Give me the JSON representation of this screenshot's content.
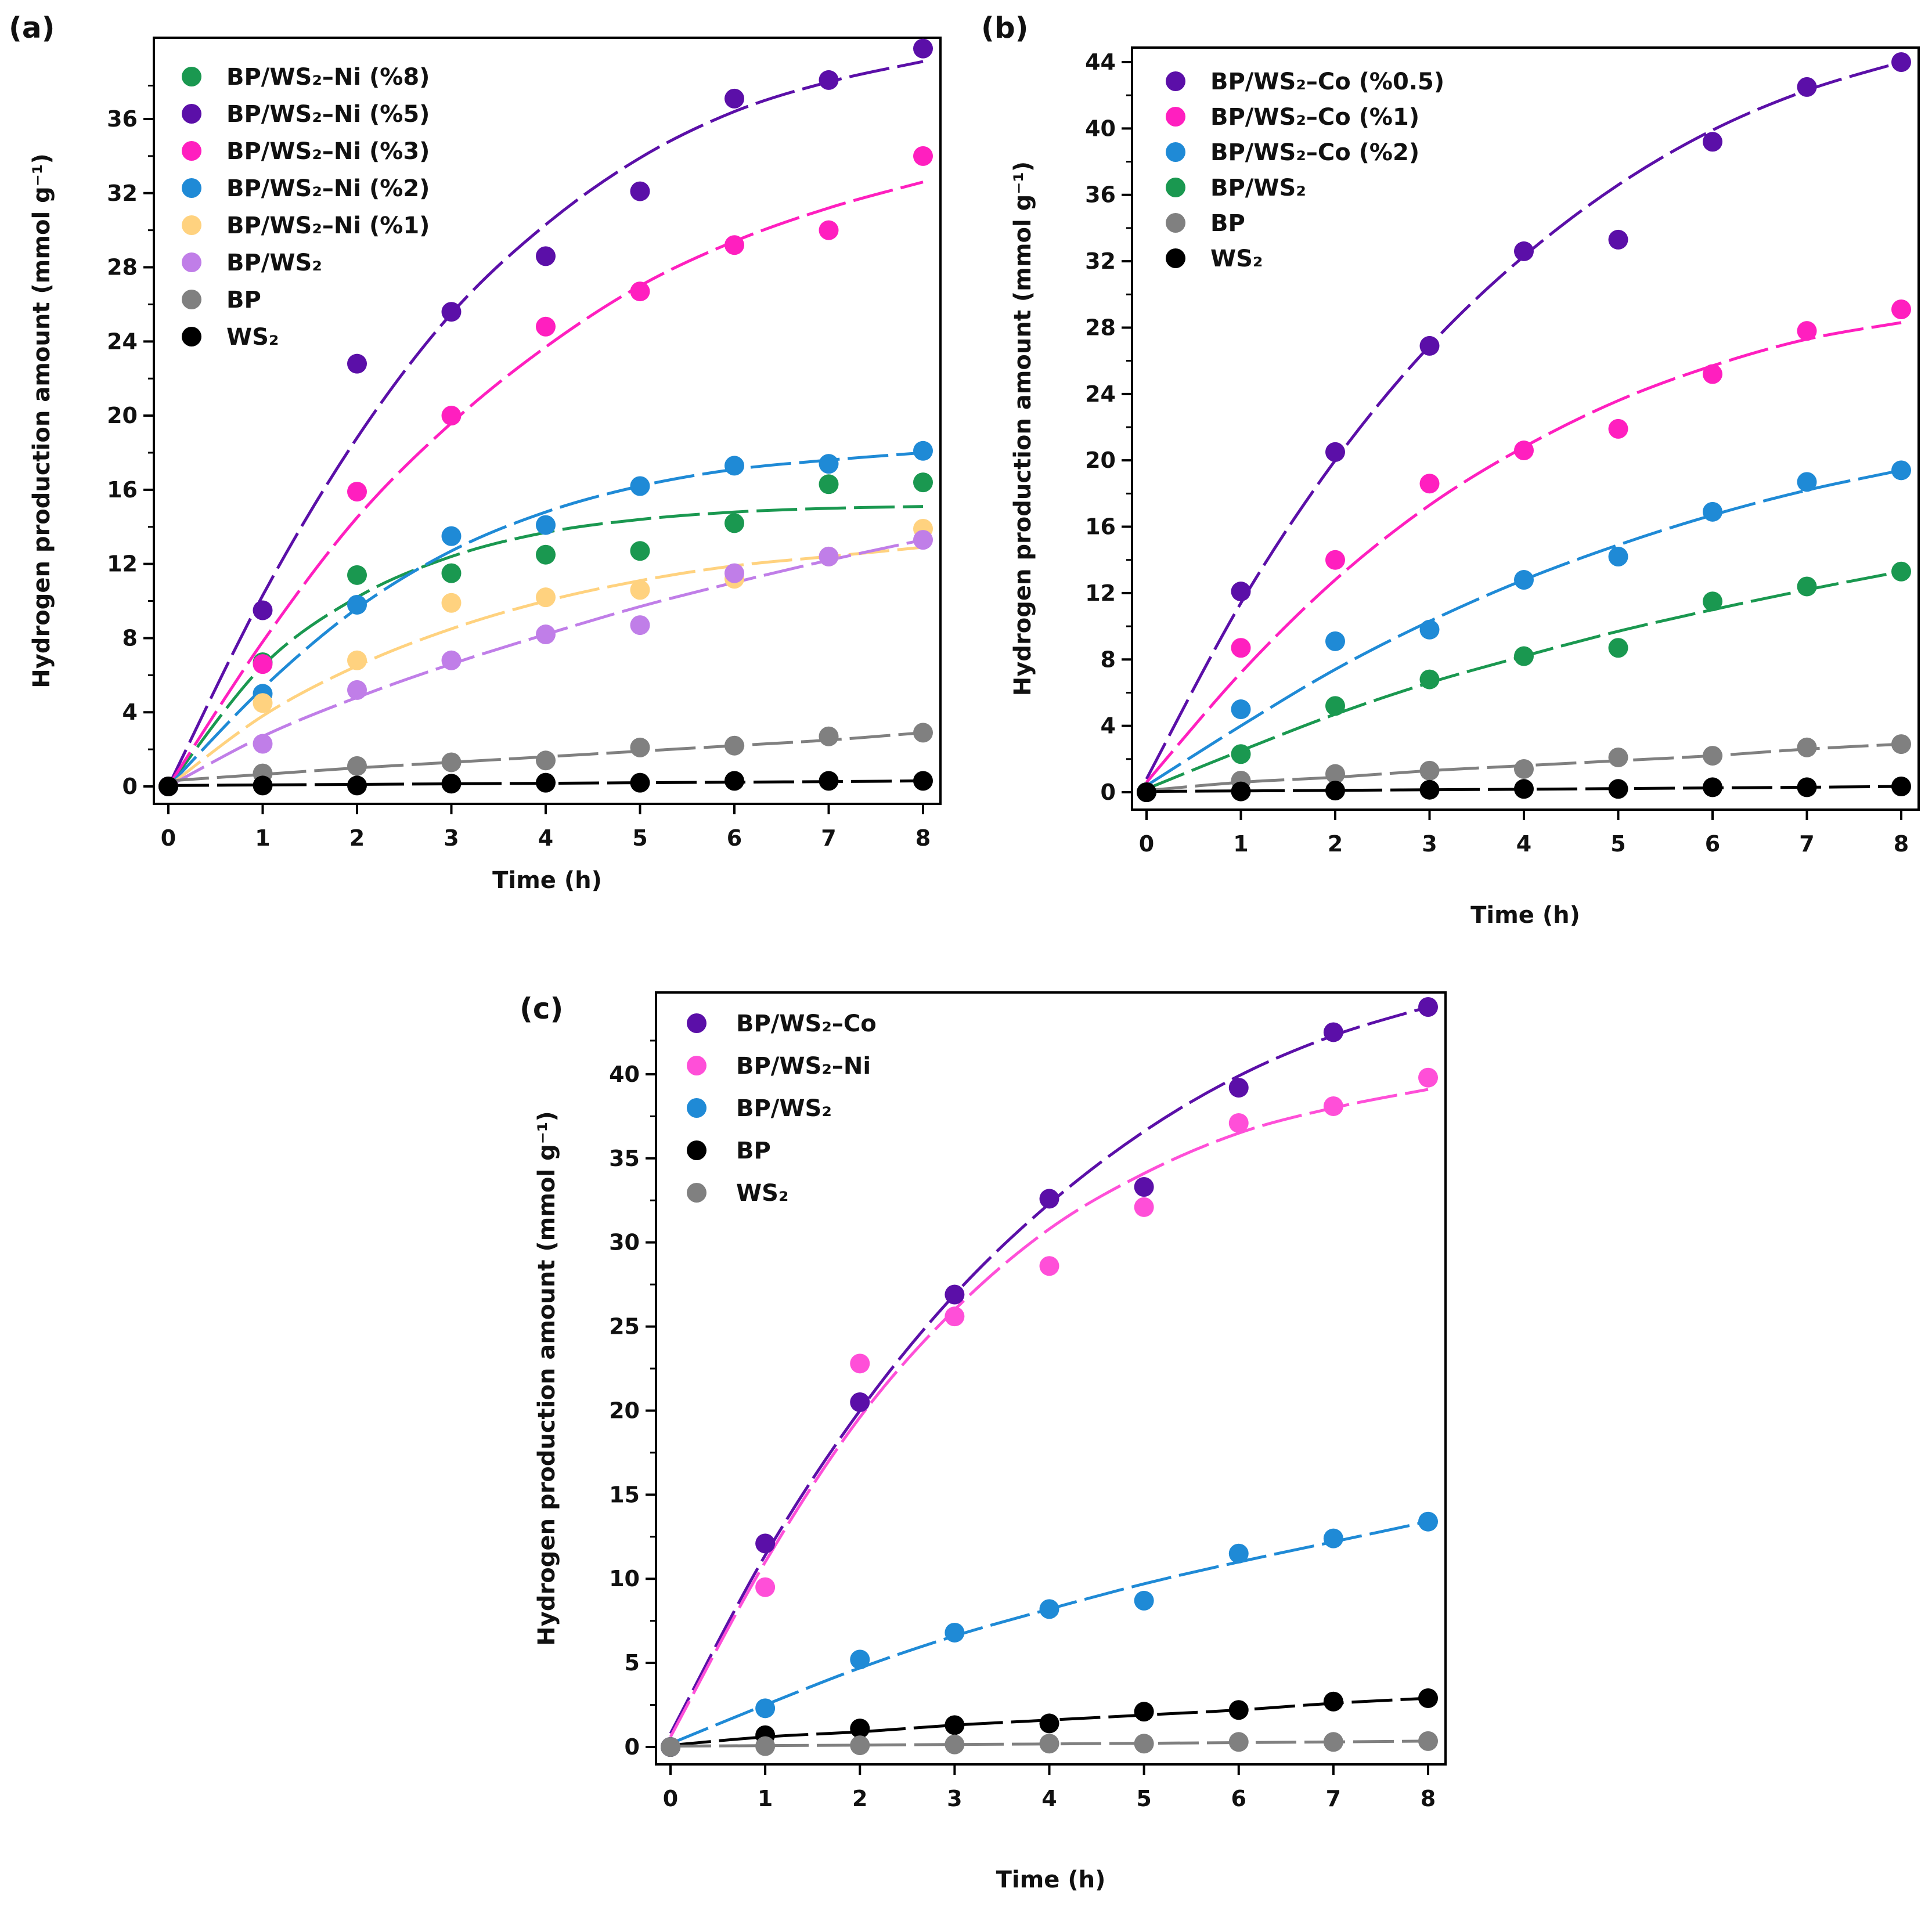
{
  "chart_data": [
    {
      "panel": "(a)",
      "type": "scatter",
      "xlabel": "Time (h)",
      "ylabel": "Hydrogen production amount (mmol g⁻¹)",
      "xlim": [
        0,
        8
      ],
      "ylim": [
        0,
        39.6
      ],
      "xticks": [
        0,
        1,
        2,
        3,
        4,
        5,
        6,
        7,
        8
      ],
      "yticks": [
        0,
        4,
        8,
        12,
        16,
        20,
        24,
        28,
        32,
        36
      ],
      "legend_position": "top-left",
      "x": [
        0,
        1,
        2,
        3,
        4,
        5,
        6,
        7,
        8
      ],
      "series": [
        {
          "name": "BP/WS₂–Ni (%8)",
          "color": "#1a9850",
          "values": [
            0,
            6.7,
            11.4,
            11.5,
            12.5,
            12.7,
            14.2,
            16.3,
            16.4
          ],
          "fit": [
            0,
            6.5,
            10.2,
            12.4,
            13.7,
            14.4,
            14.8,
            15.0,
            15.1
          ]
        },
        {
          "name": "BP/WS₂–Ni (%5)",
          "color": "#5b0fa8",
          "values": [
            0,
            9.5,
            22.8,
            25.6,
            28.6,
            32.1,
            37.1,
            38.1,
            39.8
          ],
          "fit": [
            0,
            10.3,
            18.8,
            25.5,
            30.3,
            33.9,
            36.4,
            38.0,
            39.1
          ]
        },
        {
          "name": "BP/WS₂–Ni (%3)",
          "color": "#ff1fbf",
          "values": [
            0,
            6.6,
            15.9,
            20.0,
            24.8,
            26.7,
            29.2,
            30.0,
            34.0
          ],
          "fit": [
            0,
            7.8,
            14.5,
            19.6,
            23.7,
            27.0,
            29.4,
            31.2,
            32.6
          ]
        },
        {
          "name": "BP/WS₂–Ni (%2)",
          "color": "#1f8ad6",
          "values": [
            0,
            5.0,
            9.8,
            13.5,
            14.1,
            16.2,
            17.3,
            17.4,
            18.1
          ],
          "fit": [
            0,
            5.3,
            9.6,
            12.7,
            14.8,
            16.2,
            17.1,
            17.6,
            18.0
          ]
        },
        {
          "name": "BP/WS₂–Ni (%1)",
          "color": "#ffd27f",
          "values": [
            0,
            4.5,
            6.8,
            9.9,
            10.2,
            10.6,
            11.2,
            12.4,
            13.9
          ],
          "fit": [
            0,
            3.8,
            6.5,
            8.5,
            10.0,
            11.1,
            11.9,
            12.4,
            12.9
          ]
        },
        {
          "name": "BP/WS₂",
          "color": "#c07ee8",
          "values": [
            0,
            2.3,
            5.2,
            6.8,
            8.2,
            8.7,
            11.5,
            12.4,
            13.3
          ],
          "fit": [
            0,
            2.7,
            4.8,
            6.6,
            8.2,
            9.7,
            11.0,
            12.2,
            13.3
          ]
        },
        {
          "name": "BP",
          "color": "#808080",
          "values": [
            0,
            0.7,
            1.1,
            1.3,
            1.4,
            2.1,
            2.2,
            2.7,
            2.9
          ],
          "fit": [
            0.3,
            0.65,
            1.0,
            1.3,
            1.6,
            1.9,
            2.2,
            2.5,
            2.9
          ]
        },
        {
          "name": "WS₂",
          "color": "#000000",
          "values": [
            0,
            0.05,
            0.05,
            0.15,
            0.2,
            0.2,
            0.3,
            0.3,
            0.3
          ],
          "fit": [
            0.05,
            0.08,
            0.11,
            0.14,
            0.17,
            0.2,
            0.23,
            0.26,
            0.3
          ]
        }
      ]
    },
    {
      "panel": "(b)",
      "type": "scatter",
      "xlabel": "Time (h)",
      "ylabel": "Hydrogen production amount (mmol g⁻¹)",
      "xlim": [
        0,
        8
      ],
      "ylim": [
        0,
        44
      ],
      "xticks": [
        0,
        1,
        2,
        3,
        4,
        5,
        6,
        7,
        8
      ],
      "yticks": [
        0,
        4,
        8,
        12,
        16,
        20,
        24,
        28,
        32,
        36,
        40,
        44
      ],
      "legend_position": "top-left",
      "x": [
        0,
        1,
        2,
        3,
        4,
        5,
        6,
        7,
        8
      ],
      "series": [
        {
          "name": "BP/WS₂–Co (%0.5)",
          "color": "#5b0fa8",
          "values": [
            0,
            12.1,
            20.5,
            26.9,
            32.6,
            33.3,
            39.2,
            42.5,
            44.0
          ],
          "fit": [
            0.8,
            11.4,
            20.0,
            26.9,
            32.3,
            36.6,
            39.9,
            42.3,
            44.0
          ]
        },
        {
          "name": "BP/WS₂–Co (%1)",
          "color": "#ff1fbf",
          "values": [
            0,
            8.7,
            14.0,
            18.6,
            20.6,
            21.9,
            25.2,
            27.8,
            29.1
          ],
          "fit": [
            0.6,
            7.2,
            12.8,
            17.3,
            20.8,
            23.6,
            25.7,
            27.3,
            28.3
          ]
        },
        {
          "name": "BP/WS₂–Co (%2)",
          "color": "#1f8ad6",
          "values": [
            0,
            5.0,
            9.1,
            9.8,
            12.8,
            14.2,
            16.9,
            18.7,
            19.4
          ],
          "fit": [
            0.4,
            4.0,
            7.4,
            10.3,
            12.8,
            14.9,
            16.7,
            18.2,
            19.4
          ]
        },
        {
          "name": "BP/WS₂",
          "color": "#1a9850",
          "values": [
            0,
            2.3,
            5.2,
            6.8,
            8.2,
            8.7,
            11.5,
            12.4,
            13.3
          ],
          "fit": [
            0.2,
            2.5,
            4.7,
            6.6,
            8.2,
            9.7,
            11.0,
            12.2,
            13.3
          ]
        },
        {
          "name": "BP",
          "color": "#808080",
          "values": [
            0,
            0.7,
            1.1,
            1.3,
            1.4,
            2.1,
            2.2,
            2.7,
            2.9
          ],
          "fit": [
            0.1,
            0.6,
            0.9,
            1.3,
            1.6,
            1.9,
            2.2,
            2.6,
            2.9
          ]
        },
        {
          "name": "WS₂",
          "color": "#000000",
          "values": [
            0,
            0.05,
            0.1,
            0.15,
            0.2,
            0.2,
            0.3,
            0.3,
            0.35
          ],
          "fit": [
            0.05,
            0.08,
            0.11,
            0.15,
            0.18,
            0.22,
            0.26,
            0.3,
            0.35
          ]
        }
      ]
    },
    {
      "panel": "(c)",
      "type": "scatter",
      "xlabel": "Time (h)",
      "ylabel": "Hydrogen production amount (mmol g⁻¹)",
      "xlim": [
        0,
        8
      ],
      "ylim": [
        0,
        44
      ],
      "xticks": [
        0,
        1,
        2,
        3,
        4,
        5,
        6,
        7,
        8
      ],
      "yticks": [
        0,
        5,
        10,
        15,
        20,
        25,
        30,
        35,
        40
      ],
      "legend_position": "top-left",
      "x": [
        0,
        1,
        2,
        3,
        4,
        5,
        6,
        7,
        8
      ],
      "series": [
        {
          "name": "BP/WS₂–Co",
          "color": "#5b0fa8",
          "values": [
            0,
            12.1,
            20.5,
            26.9,
            32.6,
            33.3,
            39.2,
            42.5,
            44.0
          ],
          "fit": [
            0.8,
            11.4,
            20.0,
            26.9,
            32.3,
            36.6,
            39.9,
            42.3,
            44.0
          ]
        },
        {
          "name": "BP/WS₂–Ni",
          "color": "#ff4fd8",
          "values": [
            0,
            9.5,
            22.8,
            25.6,
            28.6,
            32.1,
            37.1,
            38.1,
            39.8
          ],
          "fit": [
            0.6,
            11.0,
            19.6,
            26.0,
            30.8,
            34.1,
            36.5,
            38.0,
            39.1
          ]
        },
        {
          "name": "BP/WS₂",
          "color": "#1f8ad6",
          "values": [
            0,
            2.3,
            5.2,
            6.8,
            8.2,
            8.7,
            11.5,
            12.4,
            13.4
          ],
          "fit": [
            0.2,
            2.5,
            4.7,
            6.6,
            8.2,
            9.7,
            11.0,
            12.2,
            13.4
          ]
        },
        {
          "name": "BP",
          "color": "#000000",
          "values": [
            0,
            0.7,
            1.1,
            1.3,
            1.4,
            2.1,
            2.2,
            2.7,
            2.9
          ],
          "fit": [
            0.1,
            0.6,
            0.9,
            1.3,
            1.6,
            1.9,
            2.2,
            2.6,
            2.9
          ]
        },
        {
          "name": "WS₂",
          "color": "#808080",
          "values": [
            0,
            0.05,
            0.1,
            0.15,
            0.2,
            0.2,
            0.3,
            0.3,
            0.35
          ],
          "fit": [
            0.05,
            0.08,
            0.11,
            0.15,
            0.18,
            0.22,
            0.26,
            0.3,
            0.35
          ]
        }
      ]
    }
  ]
}
